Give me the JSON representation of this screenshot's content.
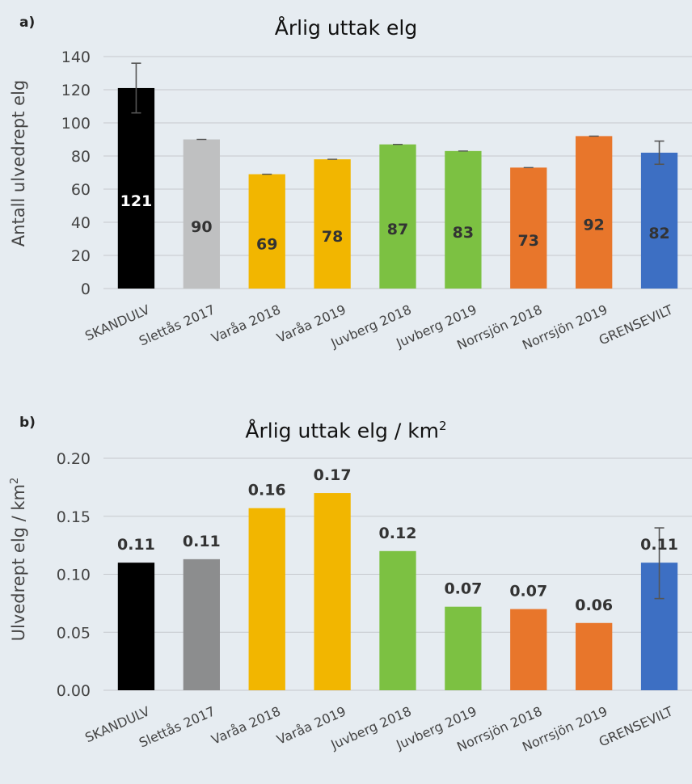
{
  "chart_data": [
    {
      "type": "bar",
      "panel_label": "a)",
      "title": "Årlig uttak elg",
      "ylabel": "Antall ulvedrept elg",
      "ylim": [
        0,
        140
      ],
      "yticks": [
        "0",
        "20",
        "40",
        "60",
        "80",
        "100",
        "120",
        "140"
      ],
      "categories": [
        "SKANDULV",
        "Slettås 2017",
        "Varåa 2018",
        "Varåa 2019",
        "Juvberg 2018",
        "Juvberg 2019",
        "Norrsjön 2018",
        "Norrsjön 2019",
        "GRENSEVILT"
      ],
      "values": [
        121,
        90,
        69,
        78,
        87,
        83,
        73,
        92,
        82
      ],
      "data_labels": [
        "121",
        "90",
        "69",
        "78",
        "87",
        "83",
        "73",
        "92",
        "82"
      ],
      "error_bars": [
        [
          106,
          136
        ],
        null,
        null,
        null,
        null,
        null,
        null,
        null,
        [
          75,
          89
        ]
      ],
      "colors": [
        "#000000",
        "#bfc0c1",
        "#f2b600",
        "#f2b600",
        "#7cc142",
        "#7cc142",
        "#e8762b",
        "#e8762b",
        "#3d6fc3"
      ],
      "label_position": "inside",
      "grid": true
    },
    {
      "type": "bar",
      "panel_label": "b)",
      "title": "Årlig uttak elg / km",
      "title_superscript": "2",
      "ylabel": "Ulvedrept elg / km",
      "ylabel_superscript": "2",
      "ylim": [
        0,
        0.2
      ],
      "yticks": [
        "0.00",
        "0.05",
        "0.10",
        "0.15",
        "0.20"
      ],
      "categories": [
        "SKANDULV",
        "Slettås 2017",
        "Varåa 2018",
        "Varåa 2019",
        "Juvberg 2018",
        "Juvberg 2019",
        "Norrsjön 2018",
        "Norrsjön 2019",
        "GRENSEVILT"
      ],
      "values": [
        0.11,
        0.113,
        0.157,
        0.17,
        0.12,
        0.072,
        0.07,
        0.058,
        0.11
      ],
      "data_labels": [
        "0.11",
        "0.11",
        "0.16",
        "0.17",
        "0.12",
        "0.07",
        "0.07",
        "0.06",
        "0.11"
      ],
      "error_bars": [
        null,
        null,
        null,
        null,
        null,
        null,
        null,
        null,
        [
          0.079,
          0.14
        ]
      ],
      "colors": [
        "#000000",
        "#8c8d8e",
        "#f2b600",
        "#f2b600",
        "#7cc142",
        "#7cc142",
        "#e8762b",
        "#e8762b",
        "#3d6fc3"
      ],
      "label_position": "above",
      "grid": true
    }
  ]
}
